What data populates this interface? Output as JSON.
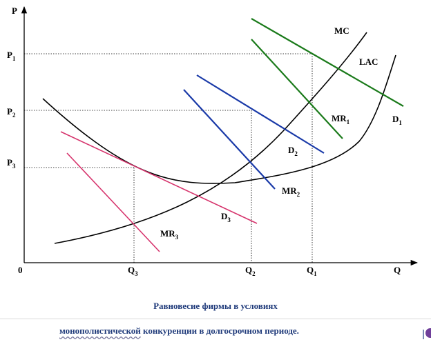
{
  "axes": {
    "y_label": "P",
    "x_label": "Q",
    "origin_label": "0",
    "p_ticks": [
      {
        "main": "P",
        "sub": "1"
      },
      {
        "main": "P",
        "sub": "2"
      },
      {
        "main": "P",
        "sub": "3"
      }
    ],
    "q_ticks": [
      {
        "main": "Q",
        "sub": "3"
      },
      {
        "main": "Q",
        "sub": "2"
      },
      {
        "main": "Q",
        "sub": "1"
      }
    ]
  },
  "curve_labels": {
    "mc": "MC",
    "lac": "LAC",
    "d1": {
      "main": "D",
      "sub": "1"
    },
    "mr1": {
      "main": "MR",
      "sub": "1"
    },
    "d2": {
      "main": "D",
      "sub": "2"
    },
    "mr2": {
      "main": "MR",
      "sub": "2"
    },
    "d3": {
      "main": "D",
      "sub": "3"
    },
    "mr3": {
      "main": "MR",
      "sub": "3"
    }
  },
  "colors": {
    "axes": "#000000",
    "mc": "#000000",
    "lac": "#000000",
    "set1": "#1a7a1a",
    "set2": "#1a3aa8",
    "set3": "#d6336c",
    "caption": "#1f3a7a"
  },
  "caption": {
    "line1": "Равновесие фирмы в условиях",
    "line2_underlined": "монополистической",
    "line2_rest": " конкуренции в долгосрочном периоде."
  }
}
